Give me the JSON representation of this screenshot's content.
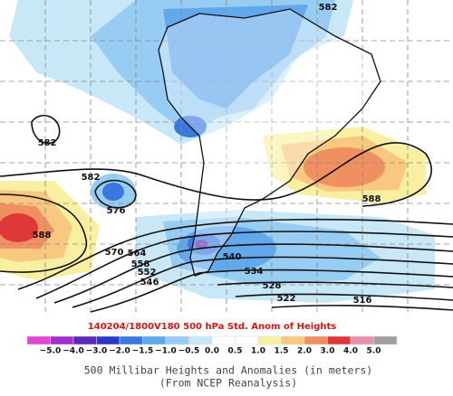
{
  "map": {
    "contour_labels": [
      "582",
      "582",
      "582",
      "576",
      "588",
      "570",
      "564",
      "558",
      "552",
      "546",
      "540",
      "534",
      "528",
      "522",
      "516",
      "588"
    ],
    "subtitle": "140204/1800V180 500 hPa Std. Anom of Heights",
    "colorbar": {
      "labels": [
        "−5.0",
        "−4.0",
        "−3.0",
        "−2.0",
        "−1.5",
        "−1.0",
        "−0.5",
        "0.0",
        "0.5",
        "1.0",
        "1.5",
        "2.0",
        "3.0",
        "4.0",
        "5.0"
      ],
      "colors": [
        "#e048d0",
        "#a030c8",
        "#5a28b8",
        "#2a38c8",
        "#3a78e0",
        "#62a8ec",
        "#98cdf3",
        "#c8e8f8",
        "#ffffff",
        "#ffffff",
        "#f8f0a0",
        "#f8c880",
        "#f09060",
        "#e03838",
        "#e890b0",
        "#a0a0a0"
      ]
    },
    "caption": [
      "500 Millibar Heights and Anomalies (in meters)",
      "(From NCEP Reanalysis)"
    ]
  }
}
